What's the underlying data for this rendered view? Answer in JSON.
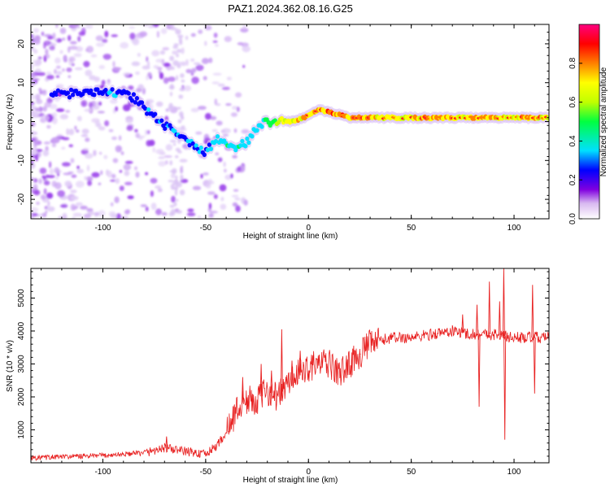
{
  "title": "PAZ1.2024.362.08.16.G25",
  "chart_data": [
    {
      "type": "heatmap",
      "xlabel": "Height of straight line (km)",
      "ylabel": "Frequency (Hz)",
      "xlim": [
        -135,
        117
      ],
      "ylim": [
        -25,
        25
      ],
      "xticks": [
        -100,
        -50,
        0,
        50,
        100
      ],
      "yticks": [
        -20,
        -10,
        0,
        10,
        20
      ],
      "colorbar": {
        "label": "Normalized spectral amplitude",
        "range": [
          0,
          1
        ],
        "ticks": [
          0.0,
          0.2,
          0.4,
          0.6,
          0.8
        ],
        "colors": [
          "#ffffff",
          "#d8b8f0",
          "#8000e0",
          "#0000ff",
          "#00e0ff",
          "#00ff40",
          "#c0ff00",
          "#ffff00",
          "#ff8000",
          "#ff0000",
          "#ff0080"
        ]
      },
      "ridge": {
        "x": [
          -120,
          -110,
          -100,
          -95,
          -90,
          -85,
          -80,
          -75,
          -70,
          -65,
          -60,
          -55,
          -50,
          -45,
          -40,
          -35,
          -30,
          -25,
          -20,
          -15,
          -10,
          -5,
          0,
          5,
          10,
          20,
          30,
          40,
          50,
          60,
          70,
          80,
          90,
          100,
          110,
          117
        ],
        "y": [
          7,
          7.5,
          8,
          7.5,
          7,
          6,
          3.5,
          1.5,
          -1,
          -2.5,
          -4.5,
          -6.5,
          -8,
          -4.5,
          -5,
          -6.5,
          -5.5,
          -1.5,
          0,
          0,
          0,
          0.5,
          1.5,
          3,
          2.5,
          1,
          1,
          1,
          1,
          1,
          1,
          1,
          1,
          1,
          1,
          1
        ],
        "amplitude": [
          0.3,
          0.35,
          0.35,
          0.4,
          0.35,
          0.3,
          0.35,
          0.35,
          0.35,
          0.4,
          0.35,
          0.4,
          0.35,
          0.45,
          0.5,
          0.5,
          0.5,
          0.45,
          0.55,
          0.65,
          0.75,
          0.8,
          0.85,
          0.9,
          0.9,
          0.85,
          0.85,
          0.8,
          0.8,
          0.85,
          0.85,
          0.8,
          0.85,
          0.8,
          0.85,
          0.85
        ]
      }
    },
    {
      "type": "line",
      "xlabel": "Height of straight line (km)",
      "ylabel": "SNR (10 * v/v)",
      "xlim": [
        -135,
        117
      ],
      "ylim": [
        0,
        5900
      ],
      "xticks": [
        -100,
        -50,
        0,
        50,
        100
      ],
      "yticks": [
        1000,
        2000,
        3000,
        4000,
        5000
      ],
      "series": [
        {
          "color": "#e82020",
          "x": [
            -135,
            -120,
            -100,
            -80,
            -70,
            -60,
            -50,
            -45,
            -40,
            -35,
            -30,
            -25,
            -20,
            -15,
            -10,
            -5,
            0,
            5,
            10,
            15,
            20,
            25,
            30,
            35,
            40,
            50,
            60,
            70,
            80,
            90,
            100,
            110,
            117
          ],
          "y": [
            150,
            180,
            220,
            300,
            450,
            350,
            250,
            500,
            900,
            1600,
            1900,
            1900,
            2200,
            2000,
            2400,
            2700,
            2900,
            3000,
            3000,
            2700,
            3000,
            3300,
            3600,
            3700,
            3800,
            3800,
            3900,
            4000,
            3900,
            3900,
            3800,
            3800,
            3800
          ],
          "spikes": [
            {
              "x": -69,
              "y": 800
            },
            {
              "x": -32,
              "y": 2600
            },
            {
              "x": -23,
              "y": 3000
            },
            {
              "x": -18,
              "y": 2800
            },
            {
              "x": -13,
              "y": 4050
            },
            {
              "x": -8,
              "y": 3100
            },
            {
              "x": -4,
              "y": 3400
            },
            {
              "x": 25,
              "y": 3300
            },
            {
              "x": 75,
              "y": 4500
            },
            {
              "x": 82,
              "y": 4800
            },
            {
              "x": 83,
              "y": 1700
            },
            {
              "x": 88,
              "y": 5500
            },
            {
              "x": 93,
              "y": 4900
            },
            {
              "x": 95,
              "y": 5900
            },
            {
              "x": 95.5,
              "y": 700
            },
            {
              "x": 109,
              "y": 5400
            },
            {
              "x": 110,
              "y": 2100
            }
          ]
        }
      ]
    }
  ]
}
